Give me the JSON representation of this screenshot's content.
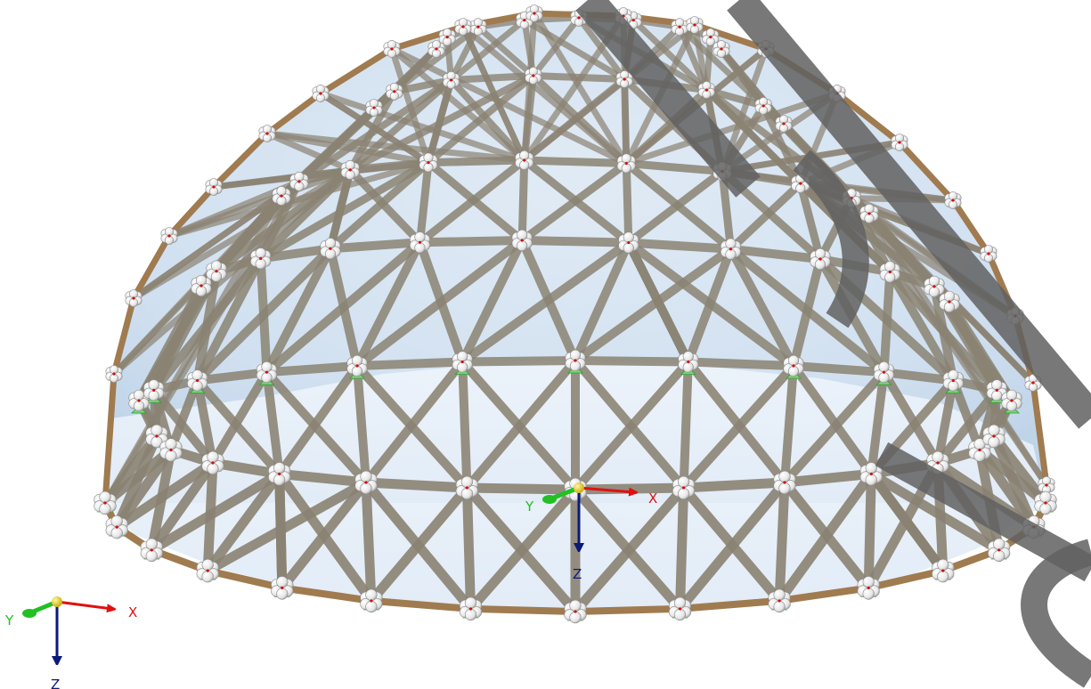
{
  "scene": {
    "background": "#ffffff",
    "glass_color": "#cfe0f0",
    "member_color": "#8a8272",
    "rim_color": "#a07b50",
    "node_color": "#f2f2f2",
    "support_color": "#6fdc6f",
    "watermark_color": "#606060"
  },
  "axes": {
    "x_label": "X",
    "y_label": "Y",
    "z_label": "Z",
    "x_color": "#e01010",
    "y_color": "#22c022",
    "z_color": "#0a1a7a",
    "origin_color": "#f0d020"
  },
  "icons": {
    "support": "green-triangle-support",
    "node": "white-sphere-cluster",
    "origin": "yellow-sphere"
  }
}
